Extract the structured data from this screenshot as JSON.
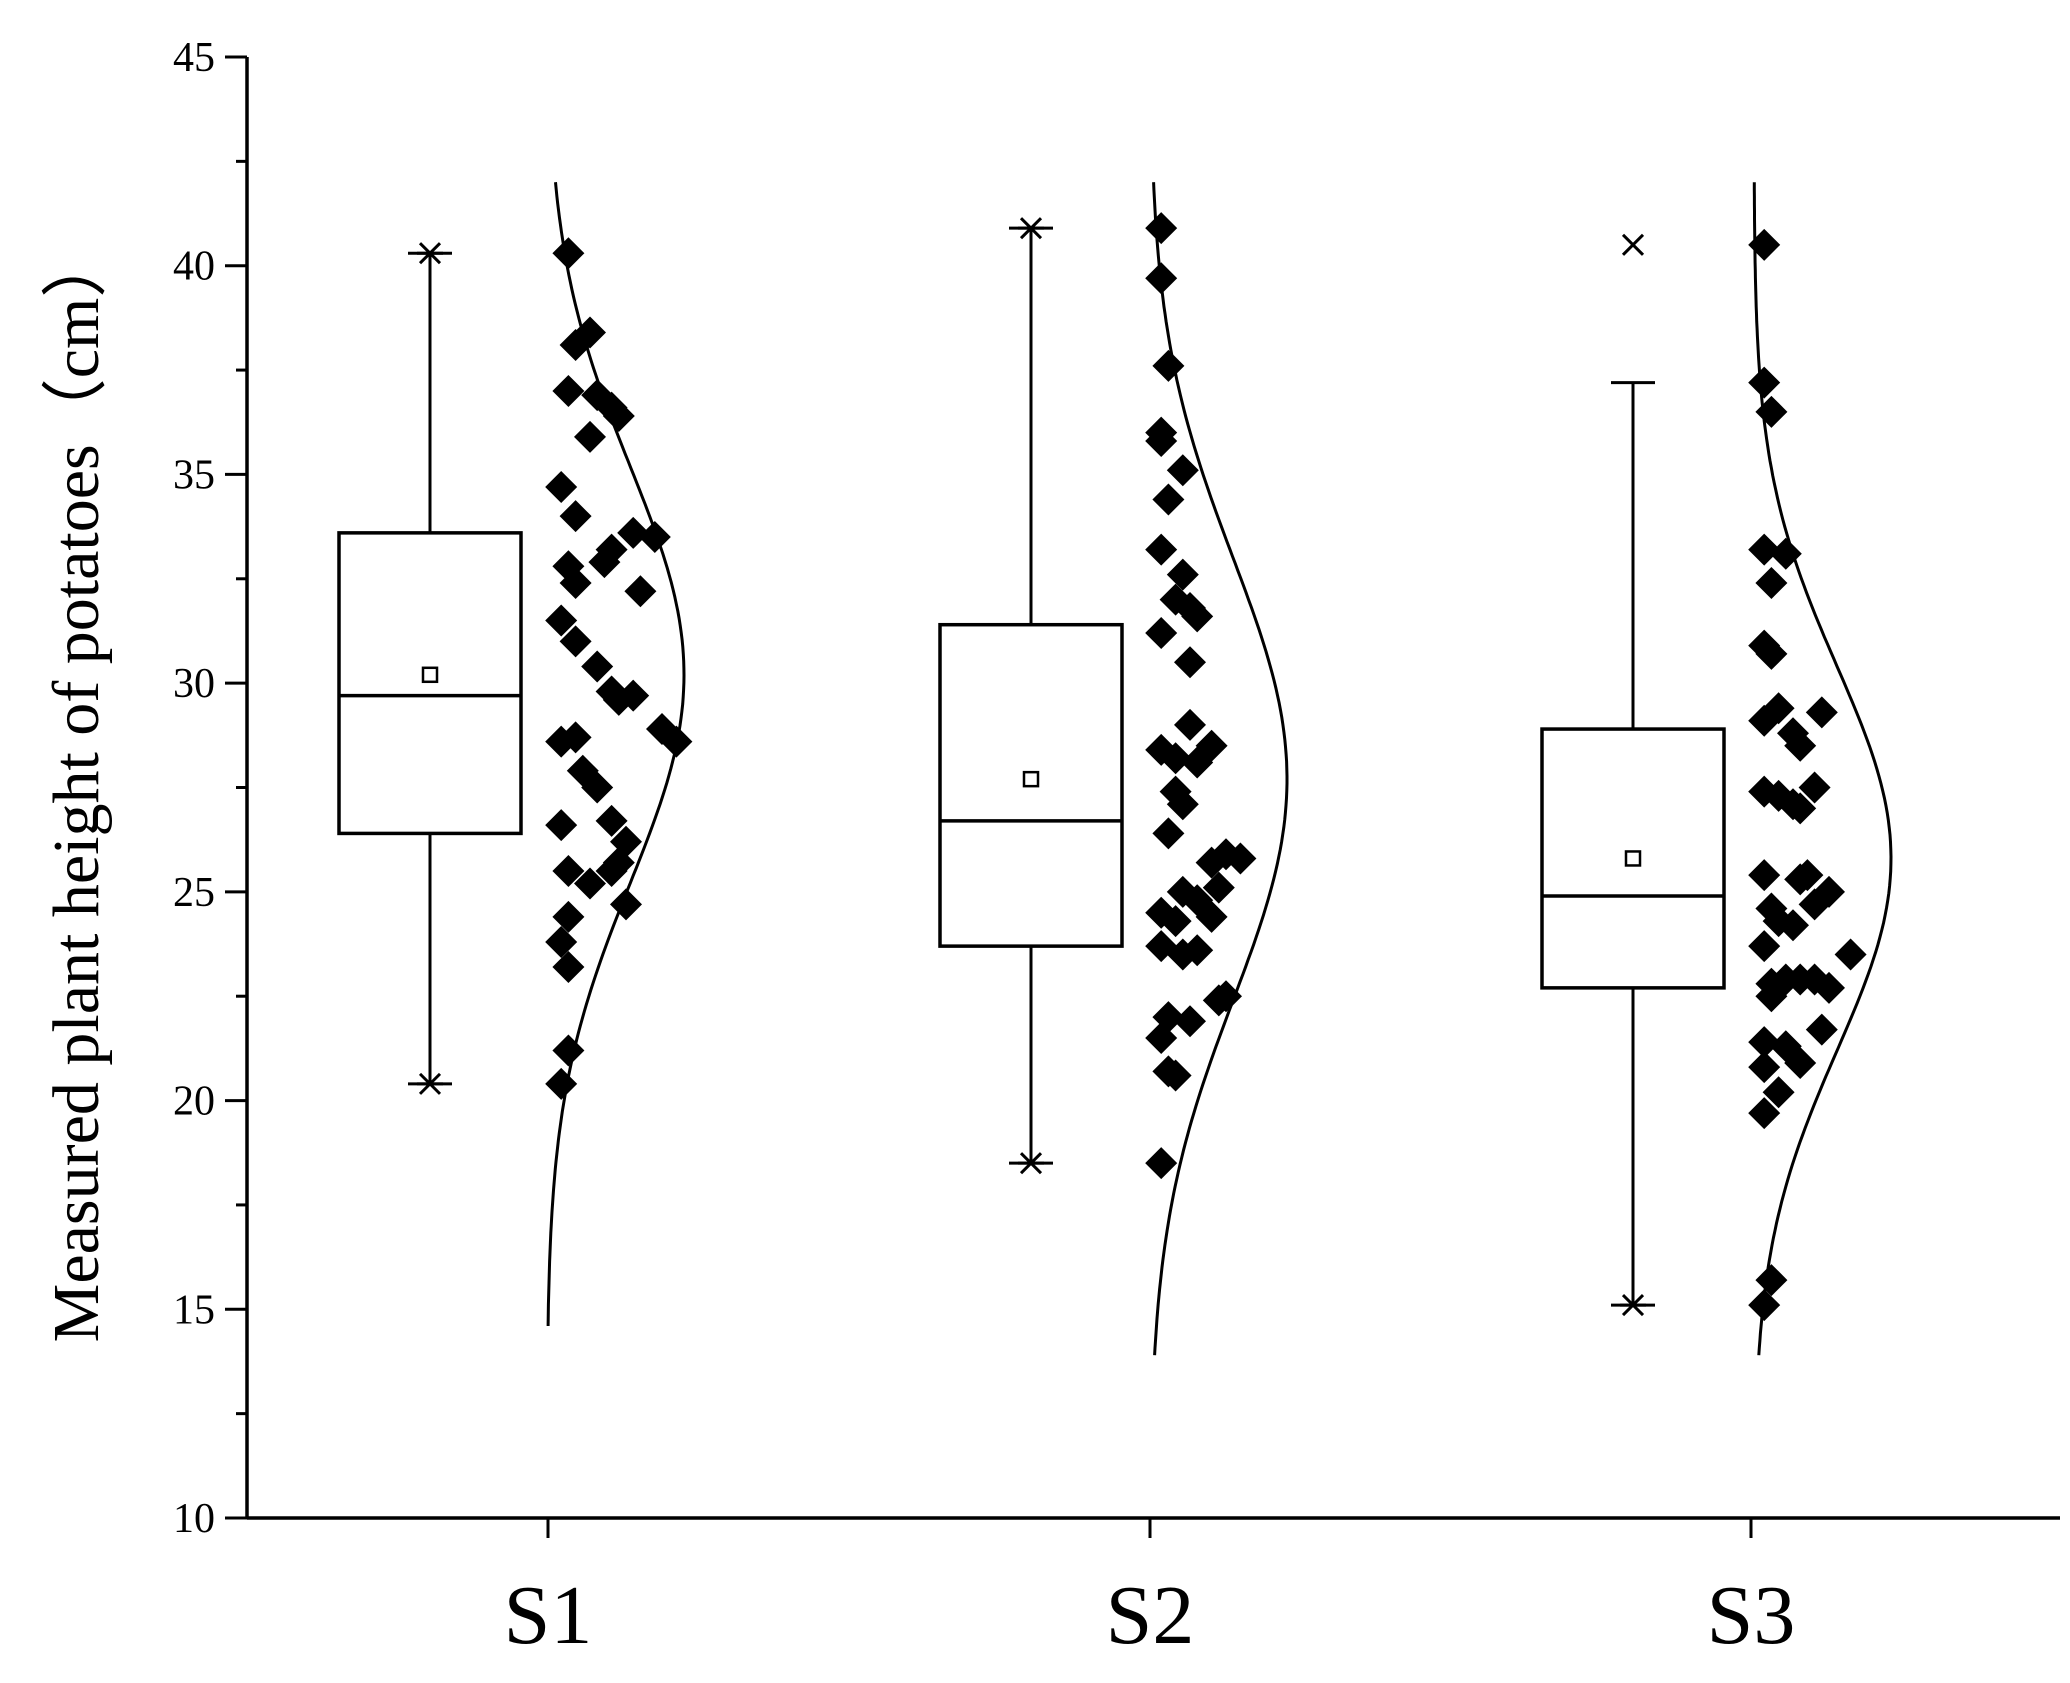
{
  "chart_data": {
    "type": "box",
    "ylabel": "Measured plant height of potatoes（cm）",
    "xlabel": "",
    "ylim": [
      10,
      45
    ],
    "yticks": [
      10,
      15,
      20,
      25,
      30,
      35,
      40,
      45
    ],
    "categories": [
      "S1",
      "S2",
      "S3"
    ],
    "grid": false,
    "groups": [
      {
        "category": "S1",
        "box": {
          "q1": 26.4,
          "median": 29.7,
          "q3": 33.6,
          "mean": 30.2,
          "whisker_low": 20.4,
          "whisker_high": 40.3
        },
        "min": 20.4,
        "max": 40.3,
        "distribution": {
          "mean": 30.2,
          "sd": 5.0,
          "y_range": [
            14.6,
            42.0
          ]
        },
        "points": [
          [
            0.2,
            40.3
          ],
          [
            0.3,
            38.1
          ],
          [
            0.5,
            38.4
          ],
          [
            0.2,
            37.0
          ],
          [
            0.6,
            36.9
          ],
          [
            0.8,
            36.6
          ],
          [
            0.9,
            36.4
          ],
          [
            0.5,
            35.9
          ],
          [
            0.1,
            34.7
          ],
          [
            0.3,
            34.0
          ],
          [
            1.4,
            33.5
          ],
          [
            0.8,
            33.2
          ],
          [
            0.7,
            32.9
          ],
          [
            1.1,
            33.6
          ],
          [
            0.2,
            32.8
          ],
          [
            0.3,
            32.4
          ],
          [
            1.2,
            32.2
          ],
          [
            0.1,
            31.5
          ],
          [
            0.3,
            31.0
          ],
          [
            0.6,
            30.4
          ],
          [
            0.8,
            29.8
          ],
          [
            1.1,
            29.7
          ],
          [
            0.9,
            29.6
          ],
          [
            1.5,
            28.9
          ],
          [
            1.7,
            28.6
          ],
          [
            0.1,
            28.6
          ],
          [
            0.3,
            28.7
          ],
          [
            0.4,
            27.9
          ],
          [
            0.6,
            27.5
          ],
          [
            0.8,
            26.7
          ],
          [
            0.1,
            26.6
          ],
          [
            1.0,
            26.2
          ],
          [
            0.9,
            25.7
          ],
          [
            0.2,
            25.5
          ],
          [
            0.5,
            25.2
          ],
          [
            0.8,
            25.5
          ],
          [
            1.0,
            24.7
          ],
          [
            0.2,
            24.4
          ],
          [
            0.1,
            23.8
          ],
          [
            0.2,
            23.2
          ],
          [
            0.2,
            21.2
          ],
          [
            0.1,
            20.4
          ]
        ]
      },
      {
        "category": "S2",
        "box": {
          "q1": 23.7,
          "median": 26.7,
          "q3": 31.4,
          "mean": 27.7,
          "whisker_low": 18.5,
          "whisker_high": 40.9
        },
        "min": 18.5,
        "max": 40.9,
        "distribution": {
          "mean": 27.7,
          "sd": 5.3,
          "y_range": [
            13.9,
            42.0
          ]
        },
        "points": [
          [
            0.1,
            40.9
          ],
          [
            0.1,
            39.7
          ],
          [
            0.2,
            37.6
          ],
          [
            0.1,
            36.0
          ],
          [
            0.1,
            35.8
          ],
          [
            0.4,
            35.1
          ],
          [
            0.2,
            34.4
          ],
          [
            0.1,
            33.2
          ],
          [
            0.4,
            32.6
          ],
          [
            0.3,
            32.0
          ],
          [
            0.5,
            31.8
          ],
          [
            0.6,
            31.6
          ],
          [
            0.1,
            31.2
          ],
          [
            0.5,
            30.5
          ],
          [
            0.5,
            29.0
          ],
          [
            0.8,
            28.5
          ],
          [
            0.1,
            28.4
          ],
          [
            0.3,
            28.2
          ],
          [
            0.6,
            28.1
          ],
          [
            0.3,
            27.4
          ],
          [
            0.4,
            27.1
          ],
          [
            0.2,
            26.4
          ],
          [
            1.0,
            25.9
          ],
          [
            0.8,
            25.7
          ],
          [
            1.2,
            25.8
          ],
          [
            0.4,
            25.0
          ],
          [
            0.6,
            24.8
          ],
          [
            0.9,
            25.1
          ],
          [
            0.1,
            24.5
          ],
          [
            0.3,
            24.3
          ],
          [
            0.8,
            24.4
          ],
          [
            0.1,
            23.7
          ],
          [
            0.4,
            23.5
          ],
          [
            0.6,
            23.6
          ],
          [
            0.9,
            22.4
          ],
          [
            1.0,
            22.5
          ],
          [
            0.2,
            22.0
          ],
          [
            0.5,
            21.9
          ],
          [
            0.1,
            21.5
          ],
          [
            0.2,
            20.7
          ],
          [
            0.3,
            20.6
          ],
          [
            0.1,
            18.5
          ]
        ]
      },
      {
        "category": "S3",
        "box": {
          "q1": 22.7,
          "median": 24.9,
          "q3": 28.9,
          "mean": 25.8,
          "whisker_low": 15.1,
          "whisker_high": 37.2
        },
        "min": 15.1,
        "max": 40.5,
        "outliers": [
          40.5
        ],
        "distribution": {
          "mean": 25.8,
          "sd": 4.6,
          "y_range": [
            13.9,
            42.0
          ]
        },
        "points": [
          [
            0.1,
            40.5
          ],
          [
            0.1,
            37.2
          ],
          [
            0.2,
            36.5
          ],
          [
            0.1,
            33.2
          ],
          [
            0.4,
            33.1
          ],
          [
            0.2,
            32.4
          ],
          [
            0.1,
            30.9
          ],
          [
            0.2,
            30.7
          ],
          [
            0.1,
            29.1
          ],
          [
            0.3,
            29.4
          ],
          [
            0.5,
            28.8
          ],
          [
            0.9,
            29.3
          ],
          [
            0.6,
            28.5
          ],
          [
            0.1,
            27.4
          ],
          [
            0.3,
            27.3
          ],
          [
            0.5,
            27.1
          ],
          [
            0.6,
            27.0
          ],
          [
            0.8,
            27.5
          ],
          [
            0.1,
            25.4
          ],
          [
            0.6,
            25.3
          ],
          [
            0.7,
            25.4
          ],
          [
            1.0,
            25.0
          ],
          [
            0.8,
            24.7
          ],
          [
            0.2,
            24.6
          ],
          [
            0.3,
            24.3
          ],
          [
            0.5,
            24.2
          ],
          [
            0.1,
            23.7
          ],
          [
            1.3,
            23.5
          ],
          [
            0.2,
            22.8
          ],
          [
            0.4,
            22.9
          ],
          [
            0.6,
            22.9
          ],
          [
            0.8,
            22.9
          ],
          [
            1.0,
            22.7
          ],
          [
            0.2,
            22.5
          ],
          [
            0.9,
            21.7
          ],
          [
            0.1,
            21.4
          ],
          [
            0.4,
            21.3
          ],
          [
            0.6,
            20.9
          ],
          [
            0.1,
            20.8
          ],
          [
            0.3,
            20.2
          ],
          [
            0.1,
            19.7
          ],
          [
            0.2,
            15.7
          ],
          [
            0.1,
            15.1
          ]
        ]
      }
    ]
  }
}
